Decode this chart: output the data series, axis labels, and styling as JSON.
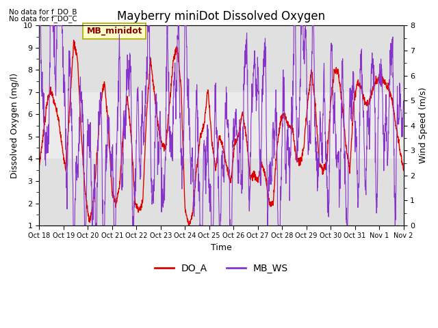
{
  "title": "Mayberry miniDot Dissolved Oxygen",
  "xlabel": "Time",
  "ylabel_left": "Dissolved Oxygen (mg/l)",
  "ylabel_right": "Wind Speed (m/s)",
  "ylim_left": [
    1.0,
    10.0
  ],
  "ylim_right": [
    0.0,
    8.0
  ],
  "yticks_left": [
    1.0,
    2.0,
    3.0,
    4.0,
    5.0,
    6.0,
    7.0,
    8.0,
    9.0,
    10.0
  ],
  "yticks_right": [
    0.0,
    1.0,
    2.0,
    3.0,
    4.0,
    5.0,
    6.0,
    7.0,
    8.0
  ],
  "xtick_labels": [
    "Oct 18",
    "Oct 19",
    "Oct 20",
    "Oct 21",
    "Oct 22",
    "Oct 23",
    "Oct 24",
    "Oct 25",
    "Oct 26",
    "Oct 27",
    "Oct 28",
    "Oct 29",
    "Oct 30",
    "Oct 31",
    "Nov 1",
    "Nov 2"
  ],
  "color_DO_A": "#dd0000",
  "color_MB_WS": "#8833cc",
  "no_data_text_1": "No data for f_DO_B",
  "no_data_text_2": "No data for f_DO_C",
  "legend_box_label": "MB_minidot",
  "legend_box_facecolor": "#ffffcc",
  "legend_box_edgecolor": "#aaaa00",
  "background_color": "#ffffff",
  "title_fontsize": 12,
  "axis_label_fontsize": 9,
  "tick_fontsize": 8,
  "legend_fontsize": 10,
  "n_fine": 2000
}
